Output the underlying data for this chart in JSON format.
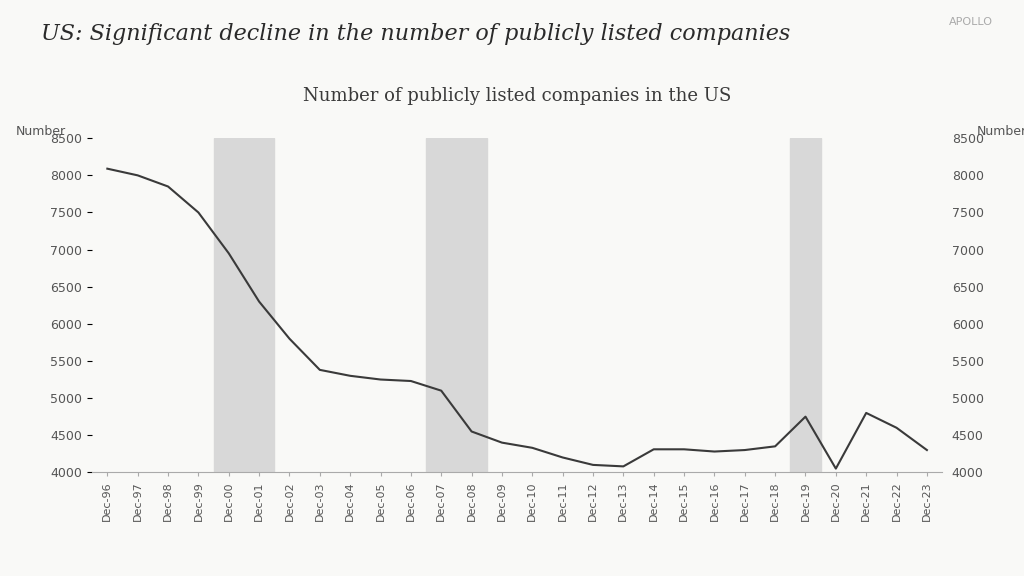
{
  "title": "US: Significant decline in the number of publicly listed companies",
  "chart_title": "Number of publicly listed companies in the US",
  "ylabel_left": "Number",
  "ylabel_right": "Number",
  "watermark": "APOLLO",
  "background_color": "#f9f9f7",
  "line_color": "#3a3a3a",
  "shading_color": "#d8d8d8",
  "ylim": [
    4000,
    8500
  ],
  "yticks": [
    4000,
    4500,
    5000,
    5500,
    6000,
    6500,
    7000,
    7500,
    8000,
    8500
  ],
  "recession_bands": [
    {
      "start": "Dec-00",
      "end": "Dec-01"
    },
    {
      "start": "Dec-07",
      "end": "Dec-08"
    },
    {
      "start": "Dec-19",
      "end": "Dec-19"
    }
  ],
  "years": [
    "Dec-96",
    "Dec-97",
    "Dec-98",
    "Dec-99",
    "Dec-00",
    "Dec-01",
    "Dec-02",
    "Dec-03",
    "Dec-04",
    "Dec-05",
    "Dec-06",
    "Dec-07",
    "Dec-08",
    "Dec-09",
    "Dec-10",
    "Dec-11",
    "Dec-12",
    "Dec-13",
    "Dec-14",
    "Dec-15",
    "Dec-16",
    "Dec-17",
    "Dec-18",
    "Dec-19",
    "Dec-20",
    "Dec-21",
    "Dec-22",
    "Dec-23"
  ],
  "values": [
    8090,
    8000,
    7850,
    7500,
    6950,
    6300,
    5800,
    5380,
    5300,
    5250,
    5230,
    5100,
    4550,
    4400,
    4330,
    4200,
    4100,
    4080,
    4310,
    4310,
    4280,
    4300,
    4350,
    4750,
    4050,
    4800,
    4600,
    4300
  ]
}
